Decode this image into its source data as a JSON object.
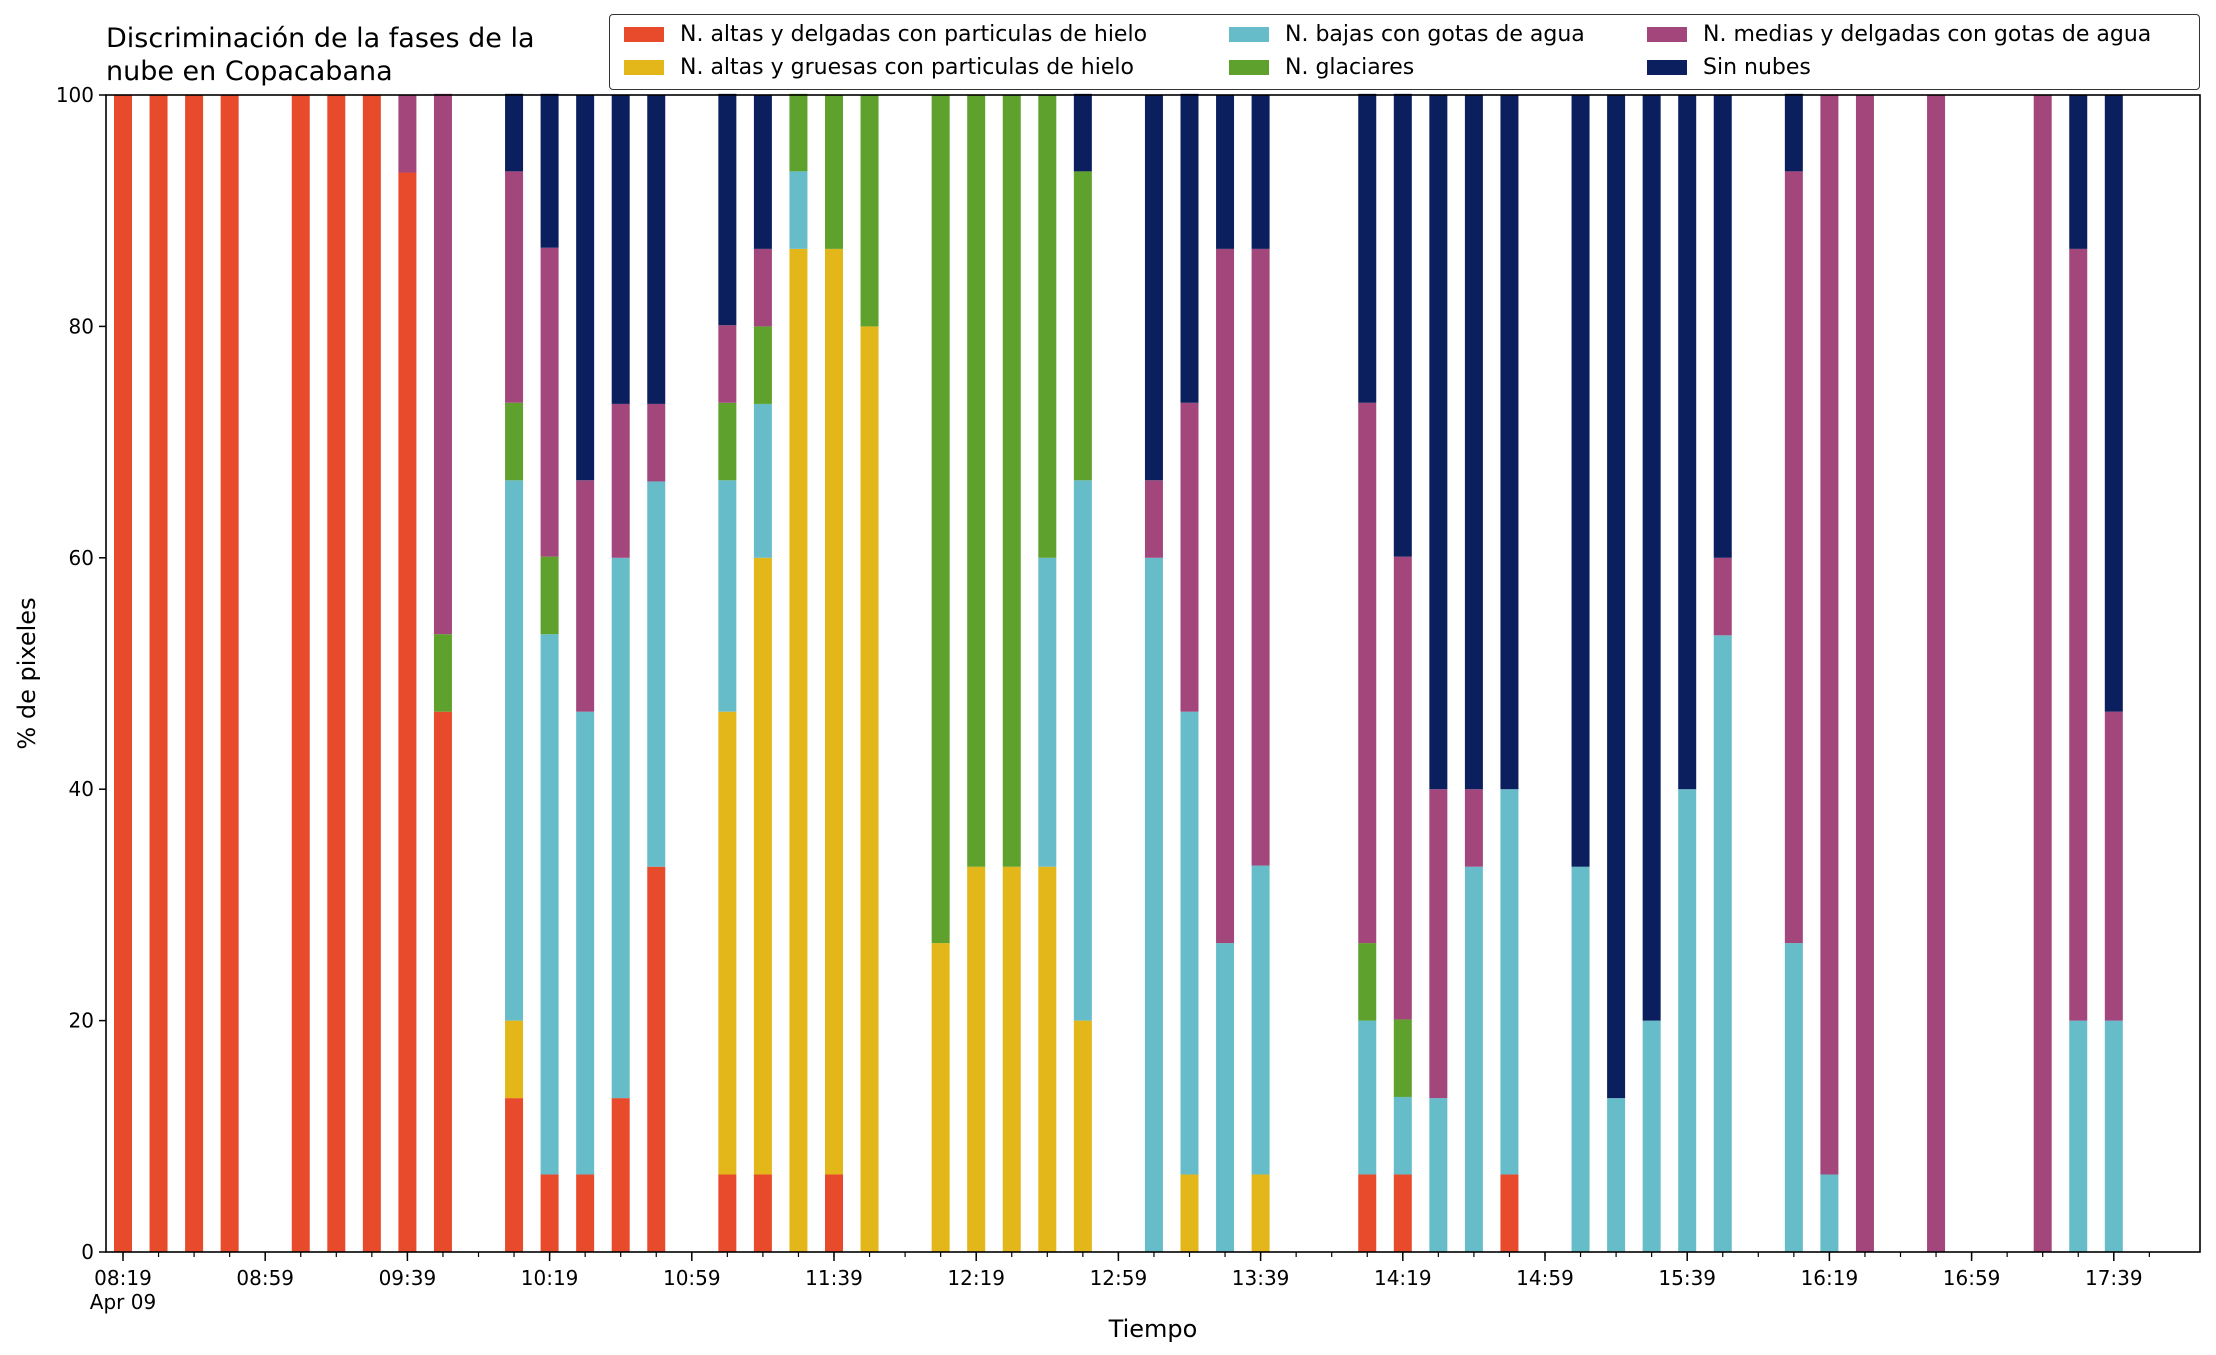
{
  "chart_data": {
    "type": "bar",
    "stacked": true,
    "title": "Discriminación de la fases de la\nnube en Copacabana",
    "xlabel": "Tiempo",
    "ylabel": "% de pixeles",
    "ylim": [
      0,
      100
    ],
    "yticks": [
      0,
      20,
      40,
      60,
      80,
      100
    ],
    "xtick_labels": [
      "08:19\nApr 09",
      "08:59",
      "09:39",
      "10:19",
      "10:59",
      "11:39",
      "12:19",
      "12:59",
      "13:39",
      "14:19",
      "14:59",
      "15:39",
      "16:19",
      "16:59",
      "17:39"
    ],
    "legend_placement": "top",
    "slot_minutes": 10,
    "start_time": "08:19",
    "categories": [
      "08:19",
      "08:29",
      "08:39",
      "08:49",
      "08:59",
      "09:09",
      "09:19",
      "09:29",
      "09:39",
      "09:49",
      "09:59",
      "10:09",
      "10:19",
      "10:29",
      "10:39",
      "10:49",
      "10:59",
      "11:09",
      "11:19",
      "11:29",
      "11:39",
      "11:49",
      "11:59",
      "12:09",
      "12:19",
      "12:29",
      "12:39",
      "12:49",
      "12:59",
      "13:09",
      "13:19",
      "13:29",
      "13:39",
      "13:49",
      "13:59",
      "14:09",
      "14:19",
      "14:29",
      "14:39",
      "14:49",
      "14:59",
      "15:09",
      "15:19",
      "15:29",
      "15:39",
      "15:49",
      "15:59",
      "16:09",
      "16:19",
      "16:29",
      "16:39",
      "16:49",
      "16:59",
      "17:09",
      "17:19",
      "17:29",
      "17:39",
      "17:49"
    ],
    "series": [
      {
        "name": "N. altas y delgadas con particulas de hielo",
        "color": "#e84b2c",
        "values": [
          100,
          100,
          100,
          100,
          0,
          100,
          100,
          100,
          93.3,
          46.7,
          0,
          13.3,
          6.7,
          6.7,
          13.3,
          33.3,
          0,
          6.7,
          6.7,
          0,
          6.7,
          0,
          0,
          0,
          0,
          0,
          0,
          0,
          0,
          0,
          0,
          0,
          0,
          0,
          0,
          6.7,
          6.7,
          0,
          0,
          6.7,
          0,
          0,
          0,
          0,
          0,
          0,
          0,
          0,
          0,
          0,
          0,
          0,
          0,
          0,
          0,
          0,
          0,
          0
        ]
      },
      {
        "name": "N. altas y gruesas con particulas de hielo",
        "color": "#e3b619",
        "values": [
          0,
          0,
          0,
          0,
          0,
          0,
          0,
          0,
          0,
          0,
          0,
          6.7,
          0,
          0,
          0,
          0,
          0,
          40,
          53.3,
          86.7,
          80,
          80,
          0,
          26.7,
          33.3,
          33.3,
          33.3,
          20,
          0,
          0,
          6.7,
          0,
          6.7,
          0,
          0,
          0,
          0,
          0,
          0,
          0,
          0,
          0,
          0,
          0,
          0,
          0,
          0,
          0,
          0,
          0,
          0,
          0,
          0,
          0,
          0,
          0,
          0,
          0
        ]
      },
      {
        "name": "N. bajas con gotas de agua",
        "color": "#66bdc9",
        "values": [
          0,
          0,
          0,
          0,
          0,
          0,
          0,
          0,
          0,
          0,
          0,
          46.7,
          46.7,
          40,
          46.7,
          33.3,
          0,
          20,
          13.3,
          6.7,
          0,
          0,
          0,
          0,
          0,
          0,
          26.7,
          46.7,
          0,
          60,
          40,
          26.7,
          26.7,
          0,
          0,
          13.3,
          6.7,
          13.3,
          33.3,
          33.3,
          0,
          33.3,
          13.3,
          20,
          40,
          53.3,
          0,
          26.7,
          6.7,
          0,
          0,
          0,
          0,
          0,
          0,
          20,
          20,
          0
        ]
      },
      {
        "name": "N. glaciares",
        "color": "#5ea12c",
        "values": [
          0,
          0,
          0,
          0,
          0,
          0,
          0,
          0,
          0,
          6.7,
          0,
          6.7,
          6.7,
          0,
          0,
          0,
          0,
          6.7,
          6.7,
          6.7,
          13.3,
          20,
          0,
          73.3,
          66.7,
          66.7,
          40,
          26.7,
          0,
          0,
          0,
          0,
          0,
          0,
          0,
          6.7,
          6.7,
          0,
          0,
          0,
          0,
          0,
          0,
          0,
          0,
          0,
          0,
          0,
          0,
          0,
          0,
          0,
          0,
          0,
          0,
          0,
          0,
          0
        ]
      },
      {
        "name": "N. medias y delgadas con gotas de agua",
        "color": "#a3467c",
        "values": [
          0,
          0,
          0,
          0,
          0,
          0,
          0,
          0,
          6.7,
          46.7,
          0,
          20,
          26.7,
          20,
          13.3,
          6.7,
          0,
          6.7,
          6.7,
          0,
          0,
          0,
          0,
          0,
          0,
          0,
          0,
          0,
          0,
          6.7,
          26.7,
          60,
          53.3,
          0,
          0,
          46.7,
          40,
          26.7,
          6.7,
          0,
          0,
          0,
          0,
          0,
          0,
          6.7,
          0,
          66.7,
          93.3,
          100,
          0,
          100,
          0,
          0,
          100,
          66.7,
          26.7,
          0
        ]
      },
      {
        "name": "Sin nubes",
        "color": "#0b1f5e",
        "values": [
          0,
          0,
          0,
          0,
          0,
          0,
          0,
          0,
          0,
          0,
          0,
          6.7,
          13.3,
          33.3,
          26.7,
          26.7,
          0,
          20,
          13.3,
          0,
          0,
          0,
          0,
          0,
          0,
          0,
          0,
          6.7,
          0,
          33.3,
          26.7,
          13.3,
          13.3,
          0,
          0,
          26.7,
          40,
          60,
          60,
          60,
          0,
          66.7,
          86.7,
          80,
          60,
          40,
          0,
          6.7,
          0,
          0,
          0,
          0,
          0,
          0,
          0,
          13.3,
          53.3,
          0
        ]
      }
    ]
  }
}
